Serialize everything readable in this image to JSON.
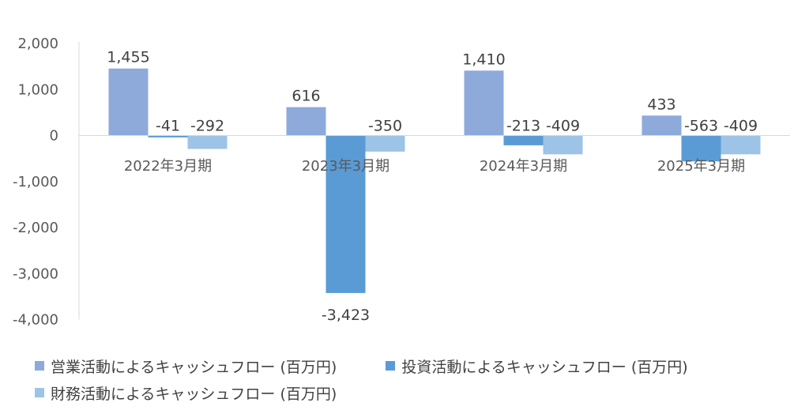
{
  "chart_data": {
    "type": "bar",
    "categories": [
      "2022年3月期",
      "2023年3月期",
      "2024年3月期",
      "2025年3月期"
    ],
    "series": [
      {
        "name": "営業活動によるキャッシュフロー (百万円)",
        "values": [
          1455,
          616,
          1410,
          433
        ],
        "labels": [
          "1,455",
          "616",
          "1,410",
          "433"
        ],
        "color": "#8eaadb"
      },
      {
        "name": "投資活動によるキャッシュフロー (百万円)",
        "values": [
          -41,
          -3423,
          -213,
          -563
        ],
        "labels": [
          "-41",
          "-3,423",
          "-213",
          "-563"
        ],
        "color": "#5b9bd5"
      },
      {
        "name": "財務活動によるキャッシュフロー (百万円)",
        "values": [
          -292,
          -350,
          -409,
          -409
        ],
        "labels": [
          "-292",
          "-350",
          "-409",
          "-409"
        ],
        "color": "#9dc3e6"
      }
    ],
    "yticks": [
      2000,
      1000,
      0,
      -1000,
      -2000,
      -3000,
      -4000
    ],
    "ytick_labels": [
      "2,000",
      "1,000",
      "0",
      "-1,000",
      "-2,000",
      "-3,000",
      "-4,000"
    ],
    "ylim": [
      -4000,
      2400
    ],
    "grid": false,
    "legend_position": "bottom"
  }
}
